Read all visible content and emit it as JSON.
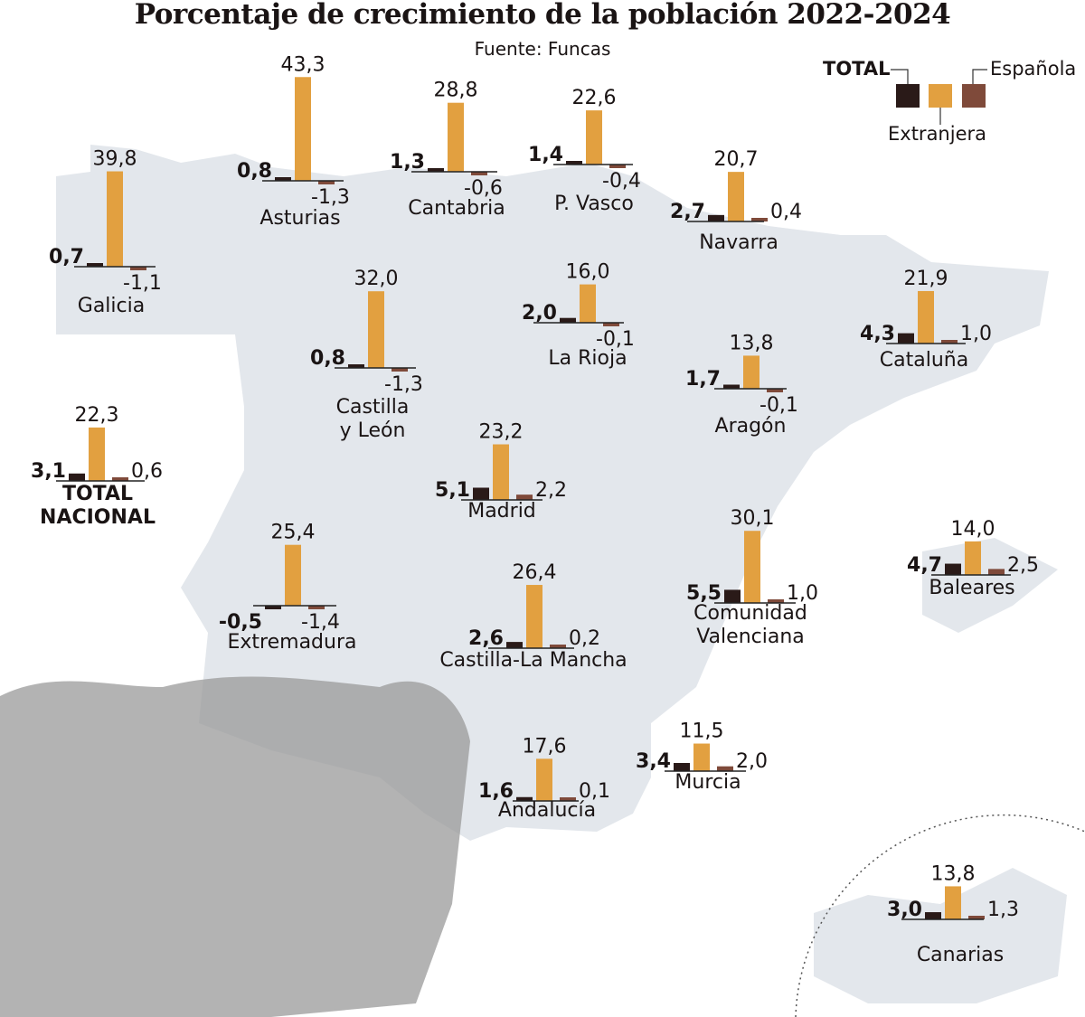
{
  "title": "Porcentaje de crecimiento de la población 2022-2024",
  "source": "Fuente: Funcas",
  "legend": {
    "total": "TOTAL",
    "extranjera": "Extranjera",
    "espanola": "Española"
  },
  "colors": {
    "total": "#2a1a18",
    "extranjera": "#e2a040",
    "espanola": "#7f4a3a",
    "map": "#e3e7ec"
  },
  "chart_data": {
    "type": "bar",
    "title": "Porcentaje de crecimiento de la población 2022-2024",
    "series_names": [
      "TOTAL",
      "Extranjera",
      "Española"
    ],
    "regions": [
      {
        "name": "Galicia",
        "total": "0,7",
        "extranjera": "39,8",
        "espanola": "-1,1",
        "values": [
          0.7,
          39.8,
          -1.1
        ]
      },
      {
        "name": "Asturias",
        "total": "0,8",
        "extranjera": "43,3",
        "espanola": "-1,3",
        "values": [
          0.8,
          43.3,
          -1.3
        ]
      },
      {
        "name": "Cantabria",
        "total": "1,3",
        "extranjera": "28,8",
        "espanola": "-0,6",
        "values": [
          1.3,
          28.8,
          -0.6
        ]
      },
      {
        "name": "P. Vasco",
        "total": "1,4",
        "extranjera": "22,6",
        "espanola": "-0,4",
        "values": [
          1.4,
          22.6,
          -0.4
        ]
      },
      {
        "name": "Navarra",
        "total": "2,7",
        "extranjera": "20,7",
        "espanola": "0,4",
        "values": [
          2.7,
          20.7,
          0.4
        ]
      },
      {
        "name": "La Rioja",
        "total": "2,0",
        "extranjera": "16,0",
        "espanola": "-0,1",
        "values": [
          2.0,
          16.0,
          -0.1
        ]
      },
      {
        "name": "Castilla y León",
        "total": "0,8",
        "extranjera": "32,0",
        "espanola": "-1,3",
        "values": [
          0.8,
          32.0,
          -1.3
        ]
      },
      {
        "name": "Cataluña",
        "total": "4,3",
        "extranjera": "21,9",
        "espanola": "1,0",
        "values": [
          4.3,
          21.9,
          1.0
        ]
      },
      {
        "name": "Aragón",
        "total": "1,7",
        "extranjera": "13,8",
        "espanola": "-0,1",
        "values": [
          1.7,
          13.8,
          -0.1
        ]
      },
      {
        "name": "TOTAL NACIONAL",
        "total": "3,1",
        "extranjera": "22,3",
        "espanola": "0,6",
        "values": [
          3.1,
          22.3,
          0.6
        ]
      },
      {
        "name": "Madrid",
        "total": "5,1",
        "extranjera": "23,2",
        "espanola": "2,2",
        "values": [
          5.1,
          23.2,
          2.2
        ]
      },
      {
        "name": "Extremadura",
        "total": "-0,5",
        "extranjera": "25,4",
        "espanola": "-1,4",
        "values": [
          -0.5,
          25.4,
          -1.4
        ]
      },
      {
        "name": "Castilla-La Mancha",
        "total": "2,6",
        "extranjera": "26,4",
        "espanola": "0,2",
        "values": [
          2.6,
          26.4,
          0.2
        ]
      },
      {
        "name": "Comunidad Valenciana",
        "total": "5,5",
        "extranjera": "30,1",
        "espanola": "1,0",
        "values": [
          5.5,
          30.1,
          1.0
        ]
      },
      {
        "name": "Baleares",
        "total": "4,7",
        "extranjera": "14,0",
        "espanola": "2,5",
        "values": [
          4.7,
          14.0,
          2.5
        ]
      },
      {
        "name": "Murcia",
        "total": "3,4",
        "extranjera": "11,5",
        "espanola": "2,0",
        "values": [
          3.4,
          11.5,
          2.0
        ]
      },
      {
        "name": "Andalucía",
        "total": "1,6",
        "extranjera": "17,6",
        "espanola": "0,1",
        "values": [
          1.6,
          17.6,
          0.1
        ]
      },
      {
        "name": "Canarias",
        "total": "3,0",
        "extranjera": "13,8",
        "espanola": "1,3",
        "values": [
          3.0,
          13.8,
          1.3
        ]
      }
    ]
  }
}
